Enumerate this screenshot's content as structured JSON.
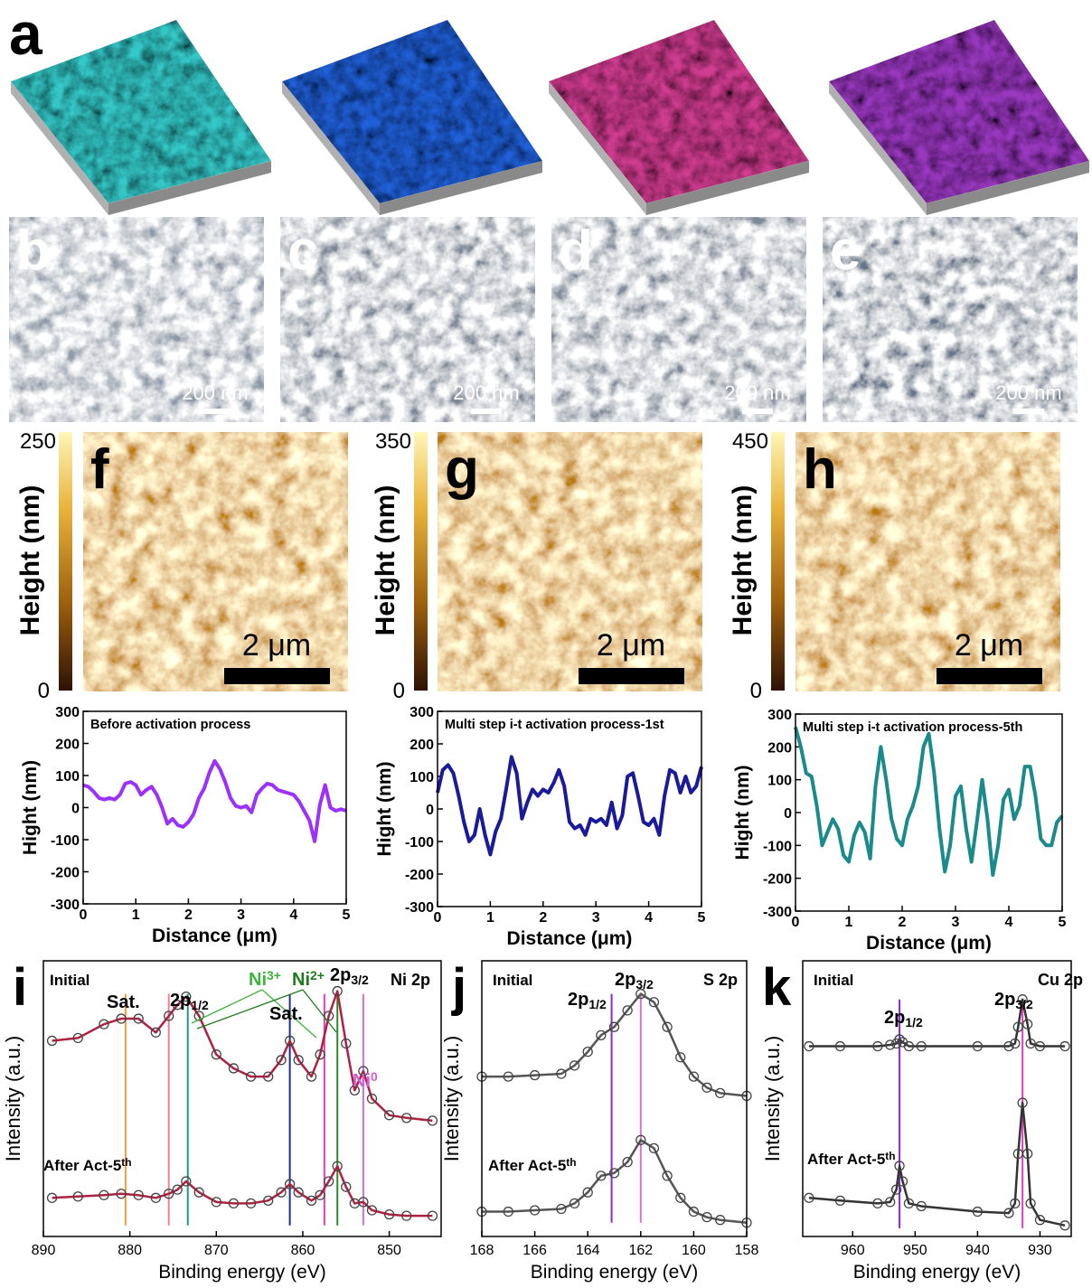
{
  "panel_a": {
    "label": "a",
    "renders": [
      {
        "color": "#35c8c8"
      },
      {
        "color": "#2060d8"
      },
      {
        "color": "#d03c90"
      },
      {
        "color": "#9a38c0"
      }
    ]
  },
  "sem": [
    {
      "label": "b",
      "scale": "200 nm",
      "tone": "#8d99a8"
    },
    {
      "label": "c",
      "scale": "200 nm",
      "tone": "#7a8696"
    },
    {
      "label": "d",
      "scale": "200 nm",
      "tone": "#7c8898"
    },
    {
      "label": "e",
      "scale": "200 nm",
      "tone": "#66768a"
    }
  ],
  "afm": [
    {
      "label": "f",
      "colorbar_label": "Height (nm)",
      "colorbar_ticks": [
        0,
        250
      ],
      "scale": "2 μm"
    },
    {
      "label": "g",
      "colorbar_label": "Height (nm)",
      "colorbar_ticks": [
        0,
        350
      ],
      "scale": "2 μm"
    },
    {
      "label": "h",
      "colorbar_label": "Height (nm)",
      "colorbar_ticks": [
        0,
        450
      ],
      "scale": "2 μm"
    }
  ],
  "chart_data": [
    {
      "type": "line",
      "title": "Before activation process",
      "xlabel": "Distance (μm)",
      "ylabel": "Hight (nm)",
      "color": "#9b30ff",
      "xlim": [
        0,
        5
      ],
      "xticks": [
        0,
        1,
        2,
        3,
        4,
        5
      ],
      "ylim": [
        -300,
        300
      ],
      "yticks": [
        -300,
        -200,
        -100,
        0,
        100,
        200,
        300
      ],
      "x": [
        0,
        0.1,
        0.2,
        0.3,
        0.4,
        0.5,
        0.6,
        0.7,
        0.8,
        0.9,
        1,
        1.1,
        1.2,
        1.3,
        1.4,
        1.5,
        1.6,
        1.7,
        1.8,
        1.9,
        2,
        2.1,
        2.2,
        2.3,
        2.4,
        2.5,
        2.6,
        2.7,
        2.8,
        2.9,
        3,
        3.1,
        3.2,
        3.3,
        3.4,
        3.5,
        3.6,
        3.7,
        3.8,
        3.9,
        4,
        4.1,
        4.2,
        4.3,
        4.4,
        4.5,
        4.6,
        4.7,
        4.8,
        4.9,
        5
      ],
      "values": [
        70,
        65,
        50,
        30,
        25,
        30,
        25,
        40,
        75,
        80,
        70,
        40,
        55,
        65,
        40,
        0,
        -50,
        -35,
        -55,
        -60,
        -45,
        -20,
        30,
        60,
        110,
        145,
        120,
        80,
        30,
        5,
        0,
        5,
        -15,
        40,
        60,
        75,
        70,
        55,
        50,
        45,
        40,
        20,
        -10,
        -40,
        -105,
        10,
        70,
        0,
        -10,
        -5,
        -10
      ]
    },
    {
      "type": "line",
      "title": "Multi step i-t activation process-1st",
      "xlabel": "Distance (μm)",
      "ylabel": "Hight (nm)",
      "color": "#1a1a9a",
      "xlim": [
        0,
        5
      ],
      "xticks": [
        0,
        1,
        2,
        3,
        4,
        5
      ],
      "ylim": [
        -300,
        300
      ],
      "yticks": [
        -300,
        -200,
        -100,
        0,
        100,
        200,
        300
      ],
      "x": [
        0,
        0.1,
        0.2,
        0.3,
        0.4,
        0.5,
        0.6,
        0.7,
        0.8,
        0.9,
        1,
        1.1,
        1.2,
        1.3,
        1.4,
        1.5,
        1.6,
        1.7,
        1.8,
        1.9,
        2,
        2.1,
        2.2,
        2.3,
        2.4,
        2.5,
        2.6,
        2.7,
        2.8,
        2.9,
        3,
        3.1,
        3.2,
        3.3,
        3.4,
        3.5,
        3.6,
        3.7,
        3.8,
        3.9,
        4,
        4.1,
        4.2,
        4.3,
        4.4,
        4.5,
        4.6,
        4.7,
        4.8,
        4.9,
        5
      ],
      "values": [
        50,
        120,
        135,
        110,
        40,
        -40,
        -100,
        -80,
        0,
        -80,
        -140,
        -70,
        -30,
        60,
        160,
        110,
        -30,
        20,
        60,
        40,
        60,
        50,
        80,
        120,
        70,
        -40,
        -60,
        -50,
        -80,
        -30,
        -40,
        -30,
        -50,
        20,
        -60,
        -20,
        100,
        110,
        40,
        -40,
        -50,
        -30,
        -80,
        40,
        120,
        110,
        50,
        100,
        50,
        70,
        130
      ]
    },
    {
      "type": "line",
      "title": "Multi step i-t activation process-5th",
      "xlabel": "Distance (μm)",
      "ylabel": "Hight (nm)",
      "color": "#1a8a8a",
      "xlim": [
        0,
        5
      ],
      "xticks": [
        0,
        1,
        2,
        3,
        4,
        5
      ],
      "ylim": [
        -300,
        300
      ],
      "yticks": [
        -300,
        -200,
        -100,
        0,
        100,
        200,
        300
      ],
      "x": [
        0,
        0.1,
        0.2,
        0.3,
        0.4,
        0.5,
        0.6,
        0.7,
        0.8,
        0.9,
        1,
        1.1,
        1.2,
        1.3,
        1.4,
        1.5,
        1.6,
        1.7,
        1.8,
        1.9,
        2,
        2.1,
        2.2,
        2.3,
        2.4,
        2.5,
        2.6,
        2.7,
        2.8,
        2.9,
        3,
        3.1,
        3.2,
        3.3,
        3.4,
        3.5,
        3.6,
        3.7,
        3.8,
        3.9,
        4,
        4.1,
        4.2,
        4.3,
        4.4,
        4.5,
        4.6,
        4.7,
        4.8,
        4.9,
        5
      ],
      "values": [
        260,
        200,
        120,
        110,
        20,
        -100,
        -60,
        -20,
        -50,
        -130,
        -150,
        -70,
        -30,
        -60,
        -140,
        80,
        200,
        100,
        -20,
        -80,
        -100,
        -20,
        20,
        80,
        200,
        240,
        120,
        -50,
        -180,
        -100,
        50,
        80,
        -50,
        -150,
        -30,
        100,
        -20,
        -190,
        -100,
        40,
        70,
        -20,
        20,
        140,
        140,
        50,
        -80,
        -100,
        -100,
        -30,
        -10
      ]
    },
    {
      "type": "xps",
      "panel_label": "i",
      "title": "Ni 2p",
      "xlabel": "Binding energy (eV)",
      "ylabel": "Intensity (a.u.)",
      "xlim": [
        890,
        844
      ],
      "xticks": [
        890,
        880,
        870,
        860,
        850
      ],
      "ylim": [
        0,
        100
      ],
      "x": [
        889,
        886,
        883,
        881,
        879,
        877,
        875.5,
        874.5,
        873.5,
        872,
        870,
        868,
        866,
        864,
        862.5,
        861.5,
        860.5,
        859,
        858,
        857,
        856,
        855,
        854,
        853,
        852,
        850,
        848,
        845
      ],
      "series": [
        {
          "name": "Initial",
          "color": "#b02040",
          "values": [
            71,
            72,
            77,
            79,
            79,
            74,
            80,
            84,
            87,
            80,
            66,
            61,
            58,
            58,
            64,
            71,
            64,
            58,
            66,
            80,
            89,
            70,
            53,
            60,
            50,
            44,
            43,
            42
          ]
        },
        {
          "name": "After Act-5",
          "name_sup": "th",
          "color": "#b02040",
          "values": [
            14,
            14.5,
            15,
            15.5,
            15,
            14,
            15.5,
            17,
            20,
            16,
            12.5,
            12,
            12,
            13,
            16,
            19,
            16,
            13,
            15,
            20,
            25.5,
            18,
            12,
            12.5,
            9.5,
            8,
            7.5,
            7.5
          ]
        }
      ],
      "peak_lines": [
        {
          "x": 880.5,
          "color": "#f39c3a"
        },
        {
          "x": 875.5,
          "color": "#f08090"
        },
        {
          "x": 873.3,
          "color": "#1a9a8a"
        },
        {
          "x": 861.5,
          "color": "#1f2d8c"
        },
        {
          "x": 857.5,
          "color": "#e040c0"
        },
        {
          "x": 856,
          "color": "#2a8a2a"
        },
        {
          "x": 853,
          "color": "#d070e0"
        }
      ],
      "annotations": [
        {
          "text": "Sat."
        },
        {
          "text": "2p",
          "sub": "1/2"
        },
        {
          "text": "Ni",
          "sup": "3+",
          "color": "#3cb43c"
        },
        {
          "text": "Ni",
          "sup": "2+",
          "color": "#1e7a1e"
        },
        {
          "text": "2p",
          "sub": "3/2"
        },
        {
          "text": "Sat."
        },
        {
          "text": "Ni",
          "sup": "0",
          "color": "#d060d8"
        }
      ]
    },
    {
      "type": "xps",
      "panel_label": "j",
      "title": "S 2p",
      "xlabel": "Binding energy (eV)",
      "ylabel": "Intensity (a.u.)",
      "xlim": [
        168,
        158
      ],
      "xticks": [
        168,
        166,
        164,
        162,
        160,
        158
      ],
      "ylim": [
        0,
        100
      ],
      "x": [
        168,
        167,
        166,
        165,
        164.5,
        164,
        163.5,
        163,
        162.5,
        162,
        161.5,
        161,
        160.5,
        160,
        159.5,
        159,
        158
      ],
      "series": [
        {
          "name": "Initial",
          "color": "#555555",
          "values": [
            58,
            58,
            58.5,
            59,
            62,
            67,
            73,
            76,
            82,
            88,
            85,
            76,
            65,
            58,
            54,
            52,
            51
          ]
        },
        {
          "name": "After Act-5",
          "name_sup": "th",
          "color": "#555555",
          "values": [
            9,
            9,
            9.5,
            10,
            12,
            16,
            22,
            23,
            27,
            35,
            32,
            22,
            14,
            9,
            7,
            6,
            5
          ]
        }
      ],
      "peak_lines": [
        {
          "x": 163.1,
          "color": "#8a2ad0"
        },
        {
          "x": 162,
          "color": "#e070d0"
        }
      ],
      "annotations": [
        {
          "text": "2p",
          "sub": "1/2"
        },
        {
          "text": "2p",
          "sub": "3/2"
        }
      ]
    },
    {
      "type": "xps",
      "panel_label": "k",
      "title": "Cu 2p",
      "xlabel": "Binding energy (eV)",
      "ylabel": "Intensity (a.u.)",
      "xlim": [
        968,
        925
      ],
      "xticks": [
        960,
        950,
        940,
        930
      ],
      "ylim": [
        0,
        100
      ],
      "x": [
        967,
        962,
        956,
        954,
        953,
        952.5,
        952,
        951,
        949,
        940,
        935,
        934,
        933.5,
        932.8,
        932,
        931.5,
        930,
        926
      ],
      "series": [
        {
          "name": "Initial",
          "color": "#333333",
          "values": [
            69,
            69,
            69,
            69.5,
            70,
            71.5,
            70.5,
            69,
            69,
            69,
            69,
            70,
            76,
            86,
            77,
            70,
            69,
            69
          ]
        },
        {
          "name": "After Act-5",
          "name_sup": "th",
          "color": "#333333",
          "values": [
            14,
            13,
            12,
            12.5,
            17,
            25.6,
            20,
            12,
            11,
            9,
            8.5,
            12,
            30,
            48.5,
            30,
            12,
            6,
            4
          ]
        }
      ],
      "peak_lines": [
        {
          "x": 952.5,
          "color": "#8a2ad0"
        },
        {
          "x": 932.8,
          "color": "#e040c0"
        }
      ],
      "annotations": [
        {
          "text": "2p",
          "sub": "1/2"
        },
        {
          "text": "2p",
          "sub": "3/2"
        }
      ]
    }
  ]
}
